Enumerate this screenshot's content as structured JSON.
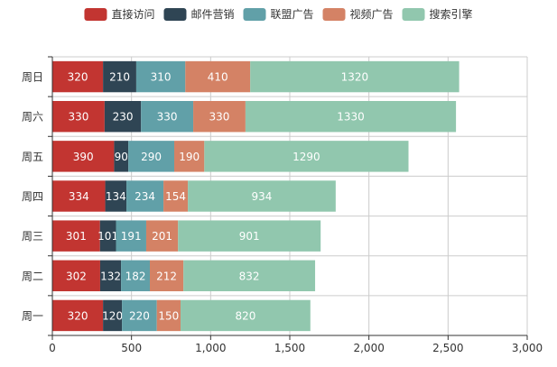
{
  "chart_data": {
    "type": "bar",
    "orientation": "horizontal",
    "stacked": true,
    "categories": [
      "周一",
      "周二",
      "周三",
      "周四",
      "周五",
      "周六",
      "周日"
    ],
    "series": [
      {
        "name": "直接访问",
        "color": "#c23531",
        "values": [
          320,
          302,
          301,
          334,
          390,
          330,
          320
        ]
      },
      {
        "name": "邮件营销",
        "color": "#2f4554",
        "values": [
          120,
          132,
          101,
          134,
          90,
          230,
          210
        ]
      },
      {
        "name": "联盟广告",
        "color": "#61a0a8",
        "values": [
          220,
          182,
          191,
          234,
          290,
          330,
          310
        ]
      },
      {
        "name": "视频广告",
        "color": "#d48265",
        "values": [
          150,
          212,
          201,
          154,
          190,
          330,
          410
        ]
      },
      {
        "name": "搜索引擎",
        "color": "#91c7ae",
        "values": [
          820,
          832,
          901,
          934,
          1290,
          1330,
          1320
        ]
      }
    ],
    "x_ticks": [
      "0",
      "500",
      "1,000",
      "1,500",
      "2,000",
      "2,500",
      "3,000"
    ],
    "xlim": [
      0,
      3000
    ],
    "legend_position": "top-center",
    "grid": true
  }
}
